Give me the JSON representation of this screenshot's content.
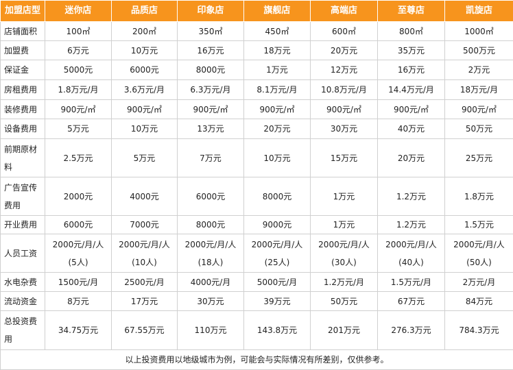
{
  "table": {
    "header": [
      "加盟店型",
      "迷你店",
      "品质店",
      "印象店",
      "旗舰店",
      "高端店",
      "至尊店",
      "凯旋店"
    ],
    "rows": [
      [
        "店铺面积",
        "100㎡",
        "200㎡",
        "350㎡",
        "450㎡",
        "600㎡",
        "800㎡",
        "1000㎡"
      ],
      [
        "加盟费",
        "6万元",
        "10万元",
        "16万元",
        "18万元",
        "20万元",
        "35万元",
        "500万元"
      ],
      [
        "保证金",
        "5000元",
        "6000元",
        "8000元",
        "1万元",
        "12万元",
        "16万元",
        "2万元"
      ],
      [
        "房租费用",
        "1.8万元/月",
        "3.6万元/月",
        "6.3万元/月",
        "8.1万元/月",
        "10.8万元/月",
        "14.4万元/月",
        "18万元/月"
      ],
      [
        "装修费用",
        "900元/㎡",
        "900元/㎡",
        "900元/㎡",
        "900元/㎡",
        "900元/㎡",
        "900元/㎡",
        "900元/㎡"
      ],
      [
        "设备费用",
        "5万元",
        "10万元",
        "13万元",
        "20万元",
        "30万元",
        "40万元",
        "50万元"
      ],
      [
        "前期原材料",
        "2.5万元",
        "5万元",
        "7万元",
        "10万元",
        "15万元",
        "20万元",
        "25万元"
      ],
      [
        "广告宣传费用",
        "2000元",
        "4000元",
        "6000元",
        "8000元",
        "1万元",
        "1.2万元",
        "1.8万元"
      ],
      [
        "开业费用",
        "6000元",
        "7000元",
        "8000元",
        "9000元",
        "1万元",
        "1.2万元",
        "1.5万元"
      ],
      [
        "人员工资",
        "2000元/月/人\n(5人)",
        "2000元/月/人\n(10人)",
        "2000元/月/人\n(18人)",
        "2000元/月/人\n(25人)",
        "2000元/月/人\n(30人)",
        "2000元/月/人\n(40人)",
        "2000元/月/人\n(50人)"
      ],
      [
        "水电杂费",
        "1500元/月",
        "2500元/月",
        "4000元/月",
        "5000元/月",
        "1.2万元/月",
        "1.5万元/月",
        "2万元/月"
      ],
      [
        "流动资金",
        "8万元",
        "17万元",
        "30万元",
        "39万元",
        "50万元",
        "67万元",
        "84万元"
      ],
      [
        "总投资费用",
        "34.75万元",
        "67.55万元",
        "110万元",
        "143.8万元",
        "201万元",
        "276.3万元",
        "784.3万元"
      ]
    ],
    "footer": "以上投资费用以地级城市为例，可能会与实际情况有所差别，仅供参考。"
  }
}
